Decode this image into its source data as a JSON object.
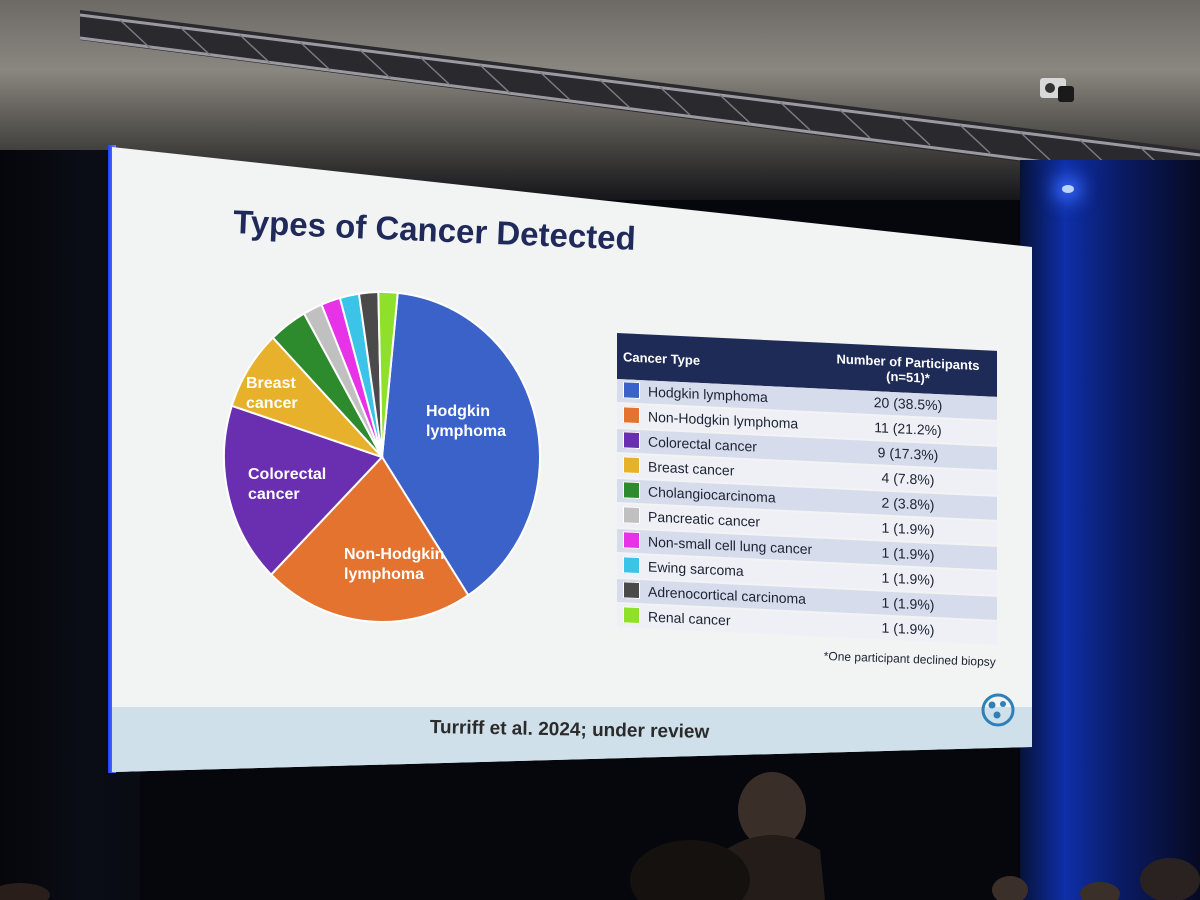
{
  "slide": {
    "title": "Types of Cancer Detected",
    "table_header": {
      "col_type": "Cancer Type",
      "col_count_line1": "Number of Participants",
      "col_count_line2": "(n=51)*"
    },
    "footnote": "*One participant declined biopsy",
    "citation": "Turriff et al. 2024; under review"
  },
  "pie_labels": {
    "hodgkin_1": "Hodgkin",
    "hodgkin_2": "lymphoma",
    "non_hodgkin_1": "Non-Hodgkin",
    "non_hodgkin_2": "lymphoma",
    "colorectal_1": "Colorectal",
    "colorectal_2": "cancer",
    "breast_1": "Breast",
    "breast_2": "cancer"
  },
  "chart_data": {
    "type": "pie",
    "title": "Types of Cancer Detected",
    "categories": [
      "Hodgkin lymphoma",
      "Non-Hodgkin lymphoma",
      "Colorectal cancer",
      "Breast cancer",
      "Cholangiocarcinoma",
      "Pancreatic cancer",
      "Non-small cell lung cancer",
      "Ewing sarcoma",
      "Adrenocortical carcinoma",
      "Renal cancer"
    ],
    "values": [
      20,
      11,
      9,
      4,
      2,
      1,
      1,
      1,
      1,
      1
    ],
    "display": [
      "20 (38.5%)",
      "11 (21.2%)",
      "9 (17.3%)",
      "4 (7.8%)",
      "2 (3.8%)",
      "1 (1.9%)",
      "1 (1.9%)",
      "1 (1.9%)",
      "1 (1.9%)",
      "1 (1.9%)"
    ],
    "colors": [
      "#3a62c8",
      "#e3732f",
      "#6a2fb0",
      "#e8b12b",
      "#2d8a2d",
      "#c0c0c0",
      "#e832e8",
      "#3cc4e8",
      "#4a4a4a",
      "#8ee02a"
    ]
  }
}
